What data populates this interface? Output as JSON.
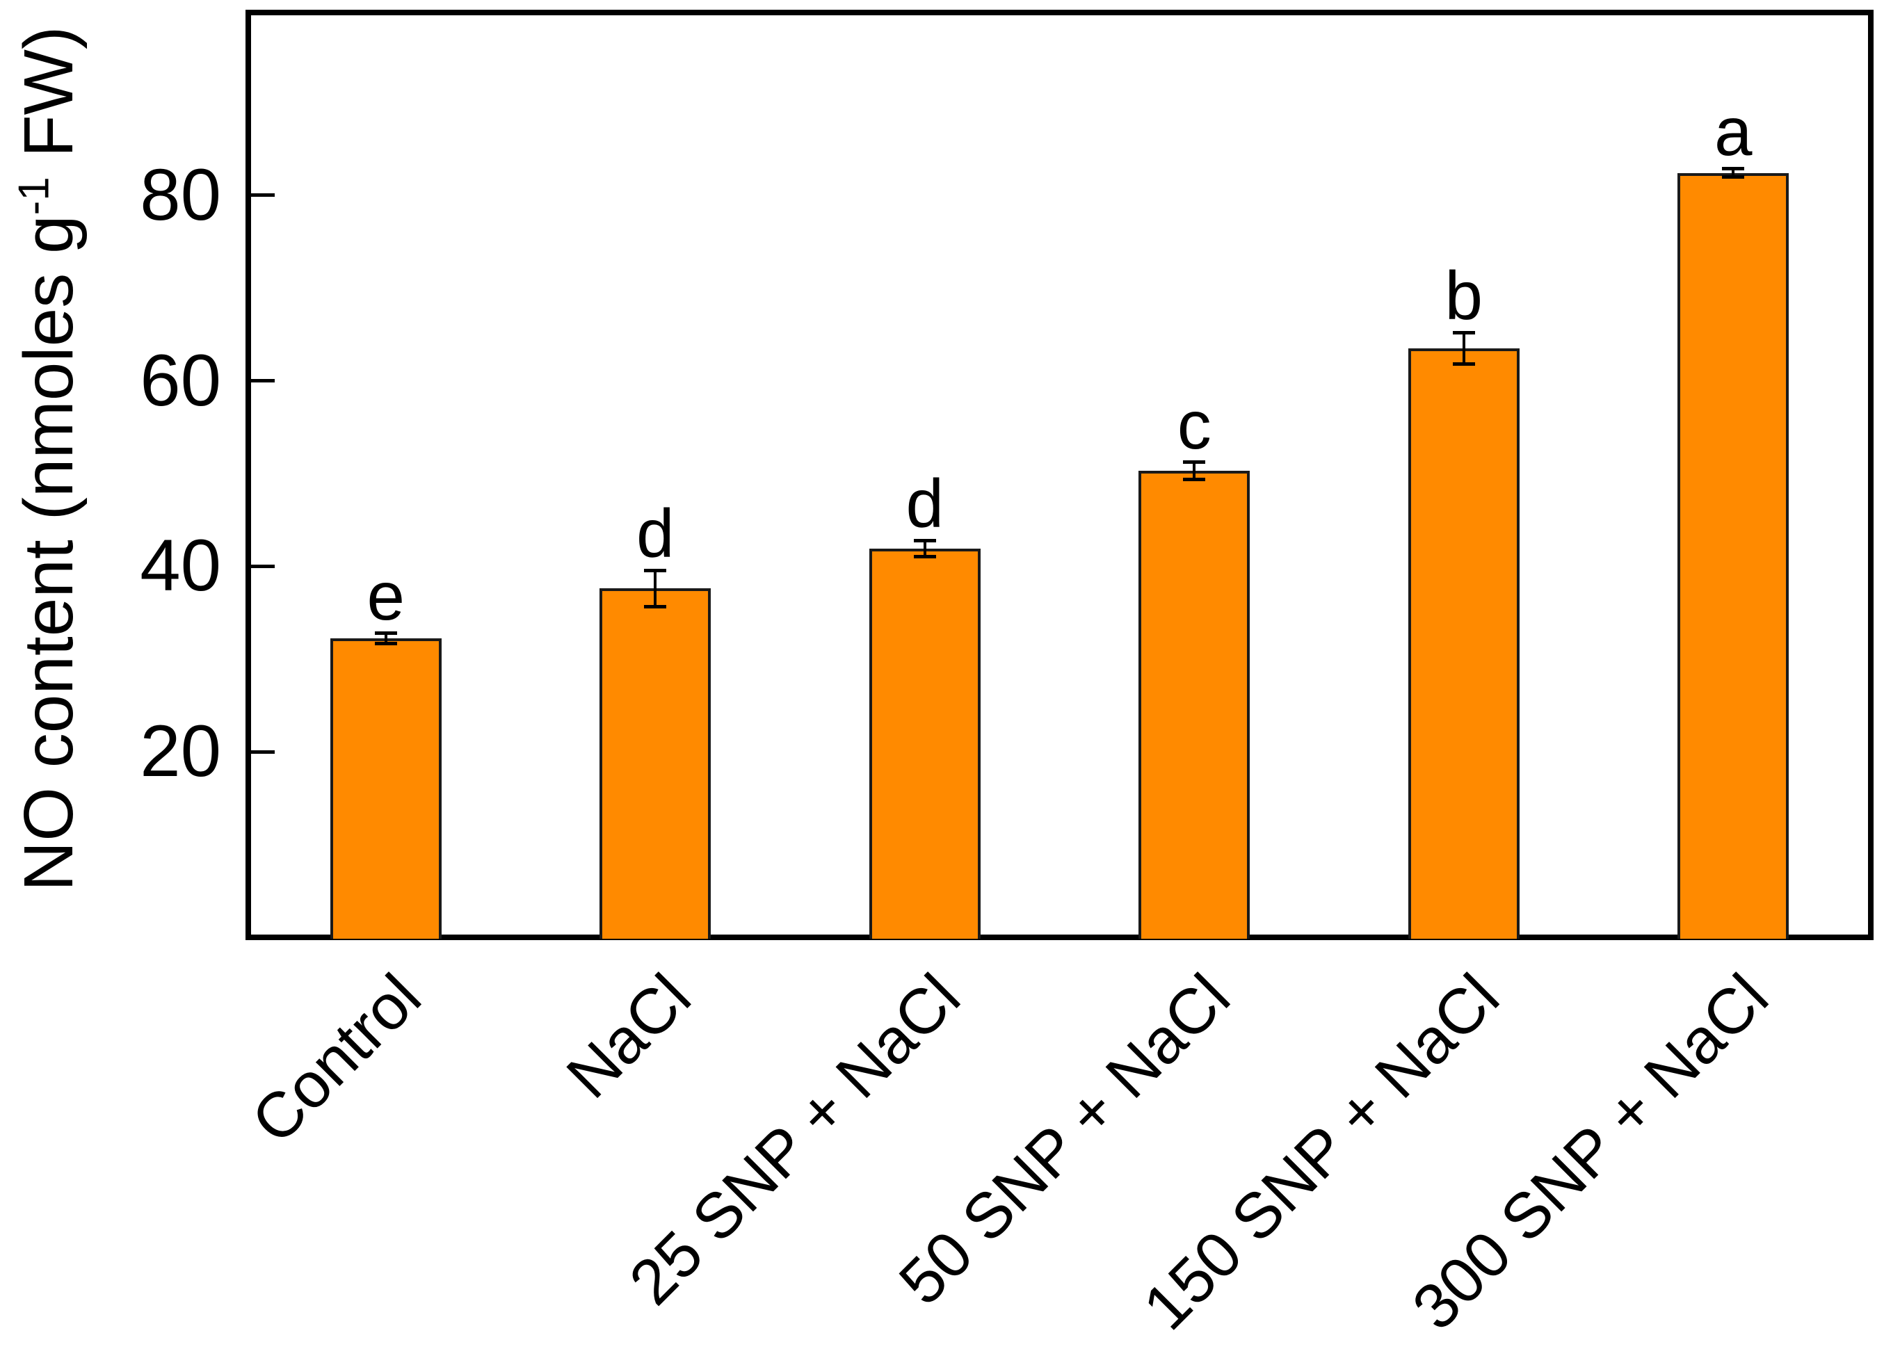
{
  "chart_data": {
    "type": "bar",
    "title": "",
    "categories": [
      "Control",
      "NaCl",
      "25 SNP + NaCl",
      "50 SNP + NaCl",
      "150 SNP + NaCl",
      "300 SNP + NaCl"
    ],
    "values": [
      32.2,
      37.6,
      41.9,
      50.3,
      63.5,
      82.4
    ],
    "errors": [
      0.6,
      2.0,
      0.9,
      1.0,
      1.7,
      0.5
    ],
    "significance_letters": [
      "e",
      "d",
      "d",
      "c",
      "b",
      "a"
    ],
    "ylabel": "NO content (nmoles g⁻¹ FW)",
    "ylabel_parts": {
      "prefix": "NO content (nmoles g",
      "superscript": "-1",
      "suffix": " FW)"
    },
    "xlabel": "",
    "yticks": [
      20,
      40,
      60,
      80
    ],
    "ylim": [
      0,
      100
    ],
    "x_tick_rotation_deg": 45,
    "grid": false,
    "legend": "none",
    "bar_color": "#FF8A00",
    "bar_edge_color": "#1A1A1A",
    "axis_color": "#000000",
    "text_color": "#000000",
    "background": "#FFFFFF"
  }
}
